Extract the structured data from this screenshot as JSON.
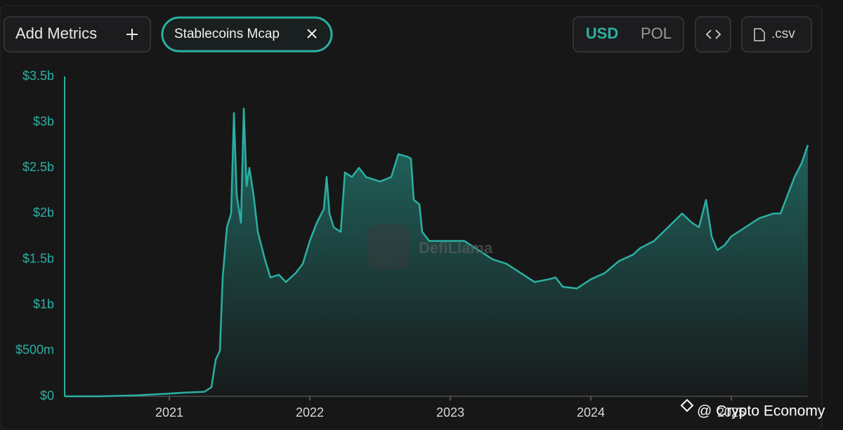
{
  "toolbar": {
    "add_metrics": "Add Metrics",
    "metric_chip": "Stablecoins Mcap",
    "currency_options": [
      "USD",
      "POL"
    ],
    "download": ".csv"
  },
  "chart_data": {
    "type": "area",
    "color": "#2ab0a2",
    "grid": false,
    "x": [
      2020.255,
      2020.5,
      2020.75,
      2021.0,
      2021.1,
      2021.25,
      2021.3,
      2021.33,
      2021.36,
      2021.38,
      2021.41,
      2021.44,
      2021.46,
      2021.48,
      2021.51,
      2021.53,
      2021.55,
      2021.57,
      2021.6,
      2021.63,
      2021.68,
      2021.72,
      2021.78,
      2021.83,
      2021.9,
      2021.95,
      2022.0,
      2022.05,
      2022.1,
      2022.12,
      2022.14,
      2022.17,
      2022.22,
      2022.25,
      2022.3,
      2022.35,
      2022.4,
      2022.5,
      2022.58,
      2022.63,
      2022.7,
      2022.72,
      2022.74,
      2022.78,
      2022.8,
      2022.85,
      2022.95,
      2023.0,
      2023.1,
      2023.2,
      2023.3,
      2023.4,
      2023.5,
      2023.6,
      2023.7,
      2023.75,
      2023.8,
      2023.9,
      2024.0,
      2024.1,
      2024.2,
      2024.3,
      2024.35,
      2024.45,
      2024.55,
      2024.65,
      2024.72,
      2024.77,
      2024.82,
      2024.86,
      2024.9,
      2024.95,
      2025.0,
      2025.1,
      2025.2,
      2025.3,
      2025.35,
      2025.4,
      2025.45,
      2025.5,
      2025.545
    ],
    "y": [
      0,
      0,
      0.01,
      0.03,
      0.04,
      0.05,
      0.1,
      0.4,
      0.5,
      1.3,
      1.85,
      2.0,
      3.1,
      2.2,
      1.9,
      3.15,
      2.3,
      2.5,
      2.2,
      1.8,
      1.5,
      1.3,
      1.33,
      1.25,
      1.35,
      1.45,
      1.7,
      1.9,
      2.05,
      2.4,
      2.0,
      1.85,
      1.8,
      2.45,
      2.4,
      2.5,
      2.4,
      2.35,
      2.4,
      2.65,
      2.62,
      2.6,
      2.15,
      2.1,
      1.8,
      1.7,
      1.7,
      1.7,
      1.7,
      1.6,
      1.5,
      1.45,
      1.35,
      1.25,
      1.28,
      1.3,
      1.2,
      1.18,
      1.28,
      1.35,
      1.48,
      1.55,
      1.62,
      1.7,
      1.85,
      2.0,
      1.9,
      1.85,
      2.15,
      1.75,
      1.6,
      1.65,
      1.75,
      1.85,
      1.95,
      2.0,
      2.0,
      2.2,
      2.4,
      2.55,
      2.75
    ],
    "xlim": [
      2020.255,
      2025.545
    ],
    "xticks": [
      2021,
      2022,
      2023,
      2024,
      2025
    ],
    "ylim": [
      0,
      3.5
    ],
    "yticks": [
      {
        "value": 0,
        "label": "$0"
      },
      {
        "value": 0.5,
        "label": "$500m"
      },
      {
        "value": 1,
        "label": "$1b"
      },
      {
        "value": 1.5,
        "label": "$1.5b"
      },
      {
        "value": 2,
        "label": "$2b"
      },
      {
        "value": 2.5,
        "label": "$2.5b"
      },
      {
        "value": 3,
        "label": "$3b"
      },
      {
        "value": 3.5,
        "label": "$3.5b"
      }
    ]
  },
  "watermark": "DefiLlama",
  "credit": "@ Crypto Economy"
}
